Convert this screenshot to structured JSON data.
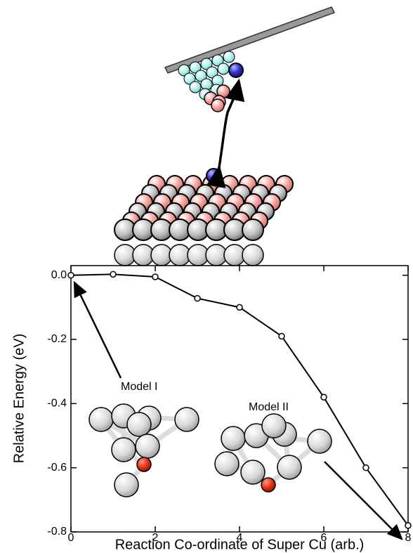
{
  "chart_data": {
    "type": "line",
    "x_label": "Reaction Co-ordinate of Super Cu (arb.)",
    "y_label": "Relative Energy (eV)",
    "annotations": [
      "Model I",
      "Model II"
    ],
    "x": [
      0,
      1,
      2,
      3,
      4,
      5,
      6,
      7,
      8
    ],
    "series": [
      {
        "color": "#000000",
        "values": [
          0.0,
          0.003,
          -0.005,
          -0.072,
          -0.1,
          -0.19,
          -0.38,
          -0.6,
          -0.78
        ]
      }
    ],
    "xlim": [
      0,
      8
    ],
    "xticks": [
      0,
      2,
      4,
      6,
      8
    ],
    "ylim": [
      -0.8,
      0.03
    ],
    "yticks": [
      {
        "value": 0,
        "label": "0.0"
      },
      {
        "value": -0.2,
        "label": "-0.2"
      },
      {
        "value": -0.4,
        "label": "-0.4"
      },
      {
        "value": -0.6,
        "label": "-0.6"
      },
      {
        "value": -0.8,
        "label": "-0.8"
      }
    ]
  }
}
